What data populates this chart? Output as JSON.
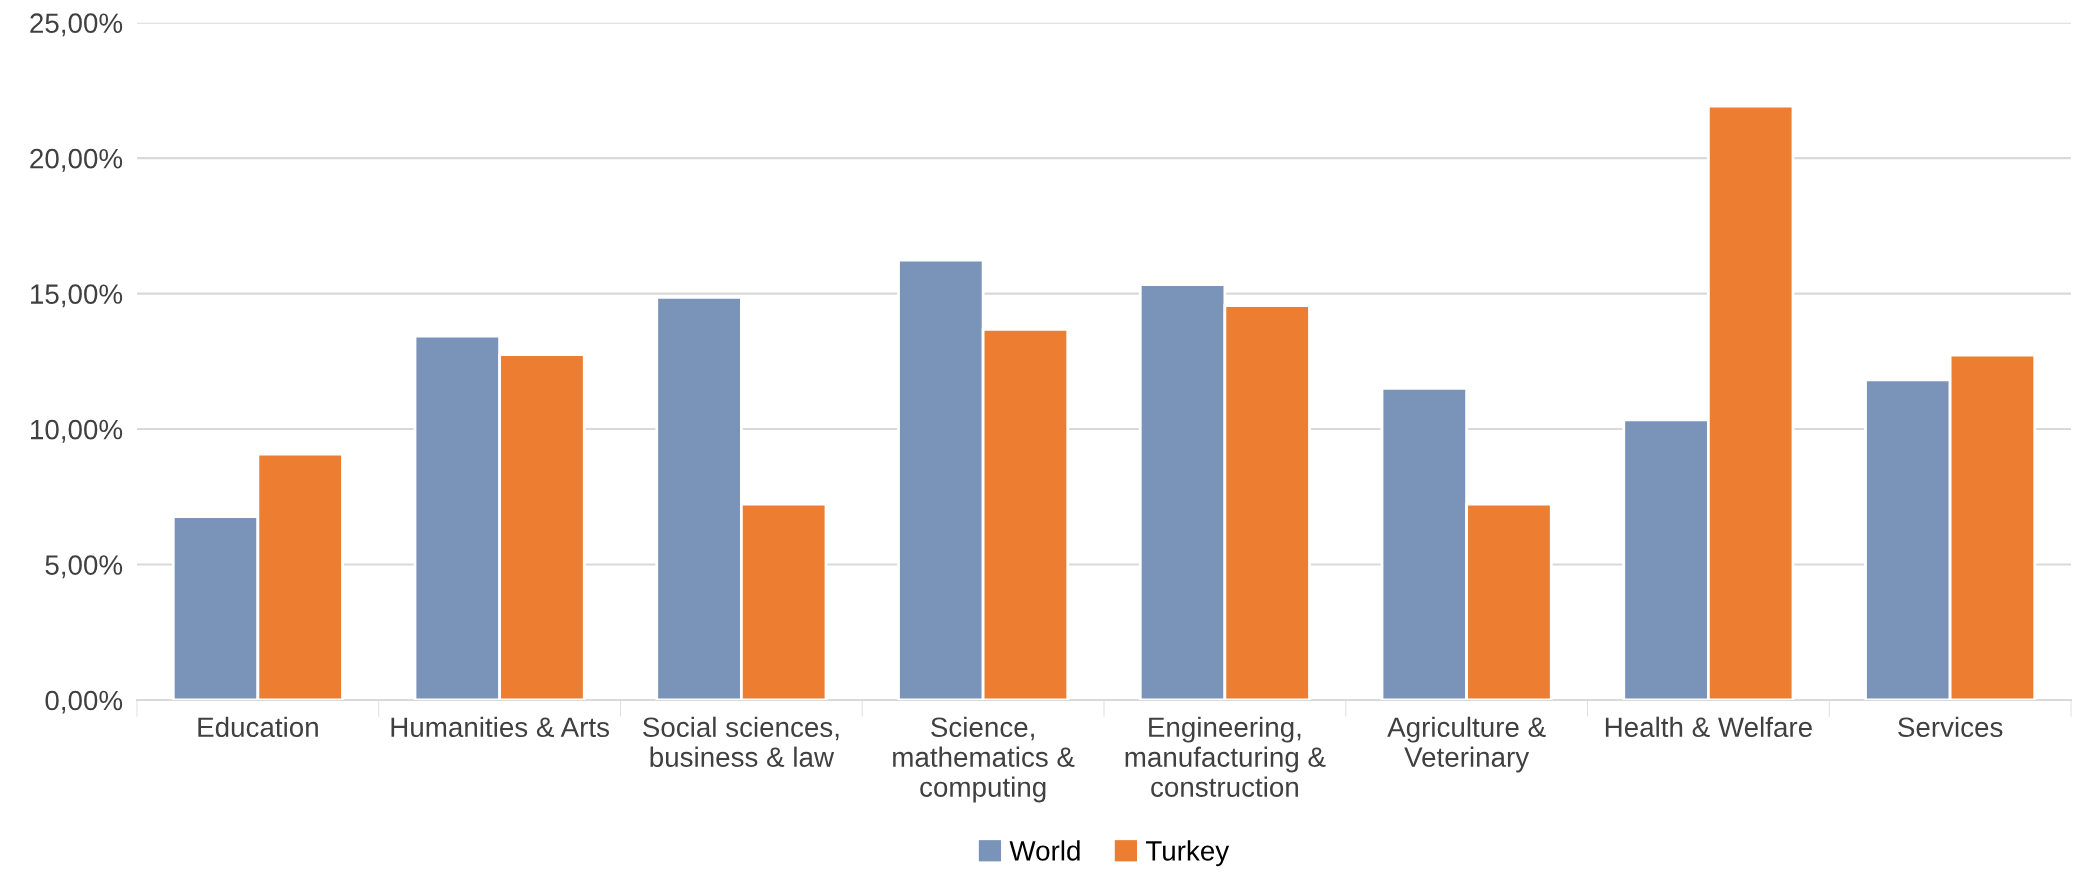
{
  "chart_data": {
    "type": "bar",
    "categories": [
      "Education",
      "Humanities & Arts",
      "Social sciences,\nbusiness & law",
      "Science,\nmathematics &\ncomputing",
      "Engineering,\nmanufacturing &\nconstruction",
      "Agriculture &\nVeterinary",
      "Health & Welfare",
      "Services"
    ],
    "series": [
      {
        "name": "World",
        "color": "#7a93b8",
        "values": [
          6.77,
          13.43,
          14.86,
          16.24,
          15.33,
          11.5,
          10.34,
          11.82
        ]
      },
      {
        "name": "Turkey",
        "color": "#ed7d31",
        "values": [
          9.08,
          12.75,
          7.23,
          13.68,
          14.56,
          7.23,
          21.92,
          12.73
        ]
      }
    ],
    "ylim": [
      0,
      25
    ],
    "yticks": [
      {
        "value": 0,
        "label": "0,00%"
      },
      {
        "value": 5,
        "label": "5,00%"
      },
      {
        "value": 10,
        "label": "10,00%"
      },
      {
        "value": 15,
        "label": "15,00%"
      },
      {
        "value": 20,
        "label": "20,00%"
      },
      {
        "value": 25,
        "label": "25,00%"
      }
    ],
    "grid": "y",
    "legend": "bottom"
  }
}
